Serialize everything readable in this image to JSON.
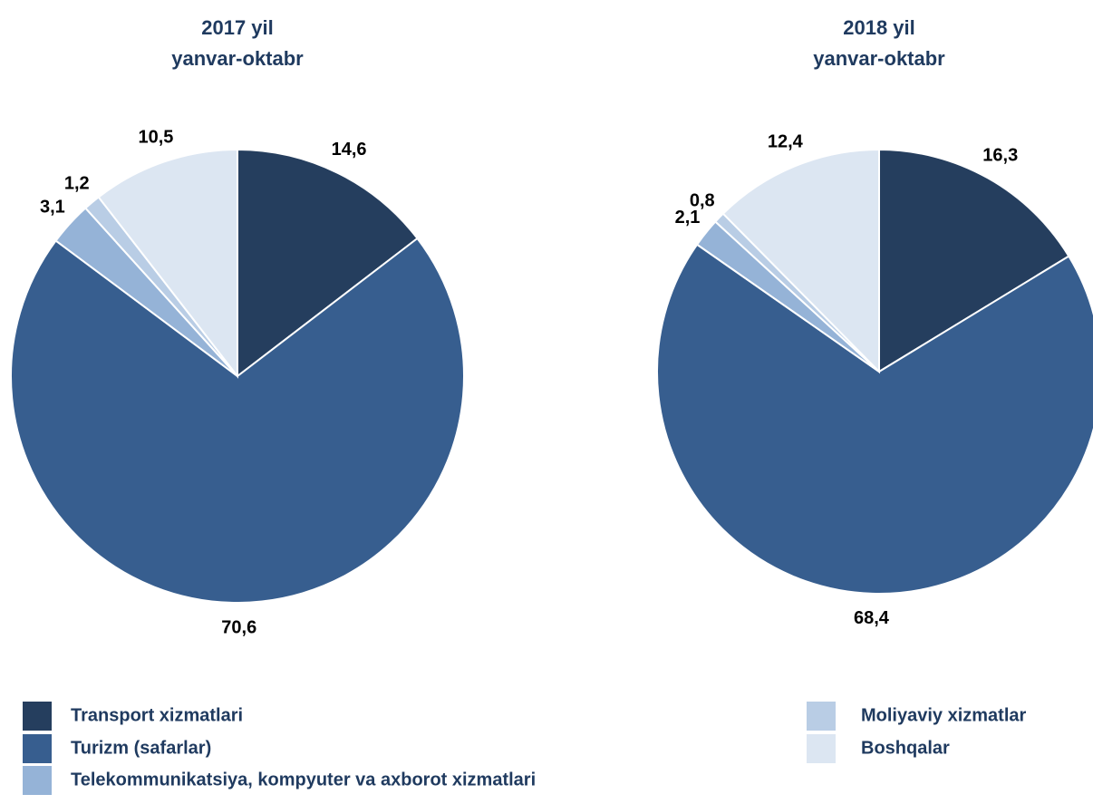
{
  "chart_data": [
    {
      "type": "pie",
      "title": "2017 yil",
      "subtitle": "yanvar-oktabr",
      "categories": [
        "Transport xizmatlari",
        "Turizm (safarlar)",
        "Telekommunikatsiya, kompyuter va axborot xizmatlari",
        "Moliyaviy xizmatlar",
        "Boshqalar"
      ],
      "values": [
        14.6,
        70.6,
        3.1,
        1.2,
        10.5
      ],
      "value_labels": [
        "14,6",
        "70,6",
        "3,1",
        "1,2",
        "10,5"
      ],
      "colors": [
        "#253e5e",
        "#375e8f",
        "#95b3d7",
        "#b9cde5",
        "#dce6f2"
      ]
    },
    {
      "type": "pie",
      "title": "2018 yil",
      "subtitle": "yanvar-oktabr",
      "categories": [
        "Transport xizmatlari",
        "Turizm (safarlar)",
        "Telekommunikatsiya, kompyuter va axborot xizmatlari",
        "Moliyaviy xizmatlar",
        "Boshqalar"
      ],
      "values": [
        16.3,
        68.4,
        2.1,
        0.8,
        12.4
      ],
      "value_labels": [
        "16,3",
        "68,4",
        "2,1",
        "0,8",
        "12,4"
      ],
      "colors": [
        "#253e5e",
        "#375e8f",
        "#95b3d7",
        "#b9cde5",
        "#dce6f2"
      ]
    }
  ]
}
